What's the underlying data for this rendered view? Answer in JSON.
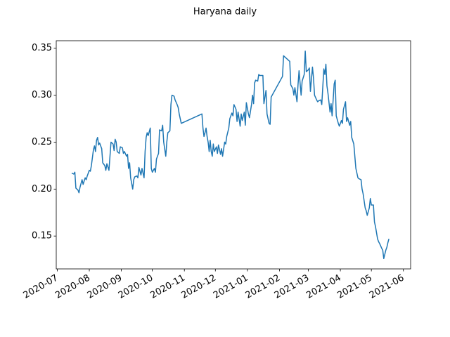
{
  "chart_data": {
    "type": "line",
    "title": "Haryana daily",
    "color": "#1f77b4",
    "grid": false,
    "xlim": [
      "2020-06-30",
      "2021-06-08"
    ],
    "xticks": [
      "2020-07",
      "2020-08",
      "2020-09",
      "2020-10",
      "2020-11",
      "2020-12",
      "2021-01",
      "2021-02",
      "2021-03",
      "2021-04",
      "2021-05",
      "2021-06"
    ],
    "ylim": [
      0.115,
      0.358
    ],
    "yticks": [
      0.15,
      {
        "value": 0.2,
        "label": "0.20"
      },
      0.25,
      {
        "value": 0.3,
        "label": "0.30"
      },
      0.35
    ],
    "x": [
      "2020-07-15",
      "2020-07-17",
      "2020-07-18",
      "2020-07-19",
      "2020-07-21",
      "2020-07-22",
      "2020-07-23",
      "2020-07-25",
      "2020-07-26",
      "2020-07-28",
      "2020-07-29",
      "2020-07-30",
      "2020-08-01",
      "2020-08-02",
      "2020-08-03",
      "2020-08-05",
      "2020-08-06",
      "2020-08-07",
      "2020-08-08",
      "2020-08-09",
      "2020-08-10",
      "2020-08-11",
      "2020-08-13",
      "2020-08-14",
      "2020-08-16",
      "2020-08-17",
      "2020-08-18",
      "2020-08-20",
      "2020-08-21",
      "2020-08-22",
      "2020-08-24",
      "2020-08-25",
      "2020-08-26",
      "2020-08-27",
      "2020-08-28",
      "2020-08-30",
      "2020-08-31",
      "2020-09-02",
      "2020-09-03",
      "2020-09-04",
      "2020-09-06",
      "2020-09-07",
      "2020-09-08",
      "2020-09-09",
      "2020-09-10",
      "2020-09-12",
      "2020-09-13",
      "2020-09-14",
      "2020-09-16",
      "2020-09-17",
      "2020-09-18",
      "2020-09-20",
      "2020-09-21",
      "2020-09-23",
      "2020-09-24",
      "2020-09-25",
      "2020-09-26",
      "2020-09-27",
      "2020-09-29",
      "2020-09-30",
      "2020-10-01",
      "2020-10-03",
      "2020-10-04",
      "2020-10-05",
      "2020-10-07",
      "2020-10-08",
      "2020-10-10",
      "2020-10-11",
      "2020-10-12",
      "2020-10-14",
      "2020-10-15",
      "2020-10-16",
      "2020-10-18",
      "2020-10-19",
      "2020-10-20",
      "2020-10-22",
      "2020-10-23",
      "2020-10-25",
      "2020-10-26",
      "2020-10-27",
      "2020-10-29",
      "2020-11-18",
      "2020-11-19",
      "2020-11-20",
      "2020-11-21",
      "2020-11-22",
      "2020-11-23",
      "2020-11-24",
      "2020-11-25",
      "2020-11-26",
      "2020-11-27",
      "2020-11-28",
      "2020-11-29",
      "2020-11-30",
      "2020-12-02",
      "2020-12-03",
      "2020-12-04",
      "2020-12-06",
      "2020-12-07",
      "2020-12-08",
      "2020-12-10",
      "2020-12-11",
      "2020-12-12",
      "2020-12-14",
      "2020-12-15",
      "2020-12-17",
      "2020-12-18",
      "2020-12-19",
      "2020-12-21",
      "2020-12-22",
      "2020-12-23",
      "2020-12-25",
      "2020-12-26",
      "2020-12-27",
      "2020-12-29",
      "2020-12-30",
      "2020-12-31",
      "2021-01-02",
      "2021-01-03",
      "2021-01-05",
      "2021-01-06",
      "2021-01-07",
      "2021-01-08",
      "2021-01-09",
      "2021-01-11",
      "2021-01-12",
      "2021-01-13",
      "2021-01-16",
      "2021-01-17",
      "2021-01-19",
      "2021-01-20",
      "2021-01-22",
      "2021-01-23",
      "2021-01-24",
      "2021-02-04",
      "2021-02-05",
      "2021-02-08",
      "2021-02-11",
      "2021-02-12",
      "2021-02-14",
      "2021-02-15",
      "2021-02-16",
      "2021-02-18",
      "2021-02-19",
      "2021-02-20",
      "2021-02-22",
      "2021-02-23",
      "2021-02-25",
      "2021-02-26",
      "2021-02-27",
      "2021-03-01",
      "2021-03-02",
      "2021-03-03",
      "2021-03-05",
      "2021-03-06",
      "2021-03-07",
      "2021-03-09",
      "2021-03-10",
      "2021-03-11",
      "2021-03-13",
      "2021-03-14",
      "2021-03-16",
      "2021-03-17",
      "2021-03-18",
      "2021-03-19",
      "2021-03-20",
      "2021-03-22",
      "2021-03-23",
      "2021-03-24",
      "2021-03-26",
      "2021-03-27",
      "2021-03-28",
      "2021-03-30",
      "2021-03-31",
      "2021-04-02",
      "2021-04-03",
      "2021-04-04",
      "2021-04-06",
      "2021-04-07",
      "2021-04-08",
      "2021-04-10",
      "2021-04-11",
      "2021-04-12",
      "2021-04-14",
      "2021-04-15",
      "2021-04-16",
      "2021-04-18",
      "2021-04-19",
      "2021-04-21",
      "2021-04-22",
      "2021-04-23",
      "2021-04-25",
      "2021-04-26",
      "2021-04-27",
      "2021-04-29",
      "2021-04-30",
      "2021-05-01",
      "2021-05-03",
      "2021-05-04",
      "2021-05-05",
      "2021-05-07",
      "2021-05-08",
      "2021-05-09",
      "2021-05-11",
      "2021-05-12",
      "2021-05-13",
      "2021-05-15",
      "2021-05-16",
      "2021-05-17",
      "2021-05-18"
    ],
    "values": [
      0.217,
      0.216,
      0.218,
      0.201,
      0.199,
      0.196,
      0.202,
      0.21,
      0.205,
      0.212,
      0.21,
      0.214,
      0.22,
      0.219,
      0.225,
      0.242,
      0.246,
      0.24,
      0.252,
      0.255,
      0.247,
      0.249,
      0.243,
      0.228,
      0.225,
      0.22,
      0.227,
      0.22,
      0.235,
      0.25,
      0.248,
      0.241,
      0.253,
      0.25,
      0.24,
      0.238,
      0.245,
      0.244,
      0.238,
      0.24,
      0.235,
      0.237,
      0.222,
      0.228,
      0.212,
      0.2,
      0.21,
      0.213,
      0.214,
      0.212,
      0.223,
      0.215,
      0.222,
      0.212,
      0.24,
      0.255,
      0.26,
      0.257,
      0.265,
      0.222,
      0.218,
      0.222,
      0.218,
      0.232,
      0.238,
      0.263,
      0.262,
      0.268,
      0.25,
      0.235,
      0.25,
      0.26,
      0.262,
      0.29,
      0.3,
      0.299,
      0.295,
      0.29,
      0.287,
      0.28,
      0.27,
      0.28,
      0.265,
      0.256,
      0.26,
      0.265,
      0.256,
      0.25,
      0.24,
      0.252,
      0.24,
      0.235,
      0.248,
      0.24,
      0.245,
      0.238,
      0.247,
      0.237,
      0.243,
      0.235,
      0.25,
      0.248,
      0.256,
      0.265,
      0.275,
      0.281,
      0.278,
      0.29,
      0.285,
      0.272,
      0.282,
      0.267,
      0.28,
      0.273,
      0.282,
      0.268,
      0.292,
      0.28,
      0.276,
      0.29,
      0.3,
      0.291,
      0.313,
      0.316,
      0.315,
      0.322,
      0.321,
      0.321,
      0.291,
      0.305,
      0.28,
      0.27,
      0.269,
      0.298,
      0.32,
      0.342,
      0.339,
      0.336,
      0.311,
      0.307,
      0.3,
      0.308,
      0.293,
      0.311,
      0.326,
      0.3,
      0.315,
      0.322,
      0.347,
      0.325,
      0.327,
      0.329,
      0.304,
      0.33,
      0.318,
      0.3,
      0.295,
      0.293,
      0.294,
      0.295,
      0.29,
      0.328,
      0.322,
      0.333,
      0.31,
      0.302,
      0.282,
      0.291,
      0.278,
      0.312,
      0.316,
      0.278,
      0.27,
      0.267,
      0.273,
      0.27,
      0.285,
      0.293,
      0.272,
      0.276,
      0.268,
      0.272,
      0.255,
      0.248,
      0.235,
      0.222,
      0.212,
      0.211,
      0.21,
      0.2,
      0.195,
      0.18,
      0.177,
      0.172,
      0.18,
      0.19,
      0.183,
      0.183,
      0.165,
      0.16,
      0.147,
      0.144,
      0.142,
      0.137,
      0.135,
      0.126,
      0.135,
      0.138,
      0.143,
      0.147
    ]
  }
}
